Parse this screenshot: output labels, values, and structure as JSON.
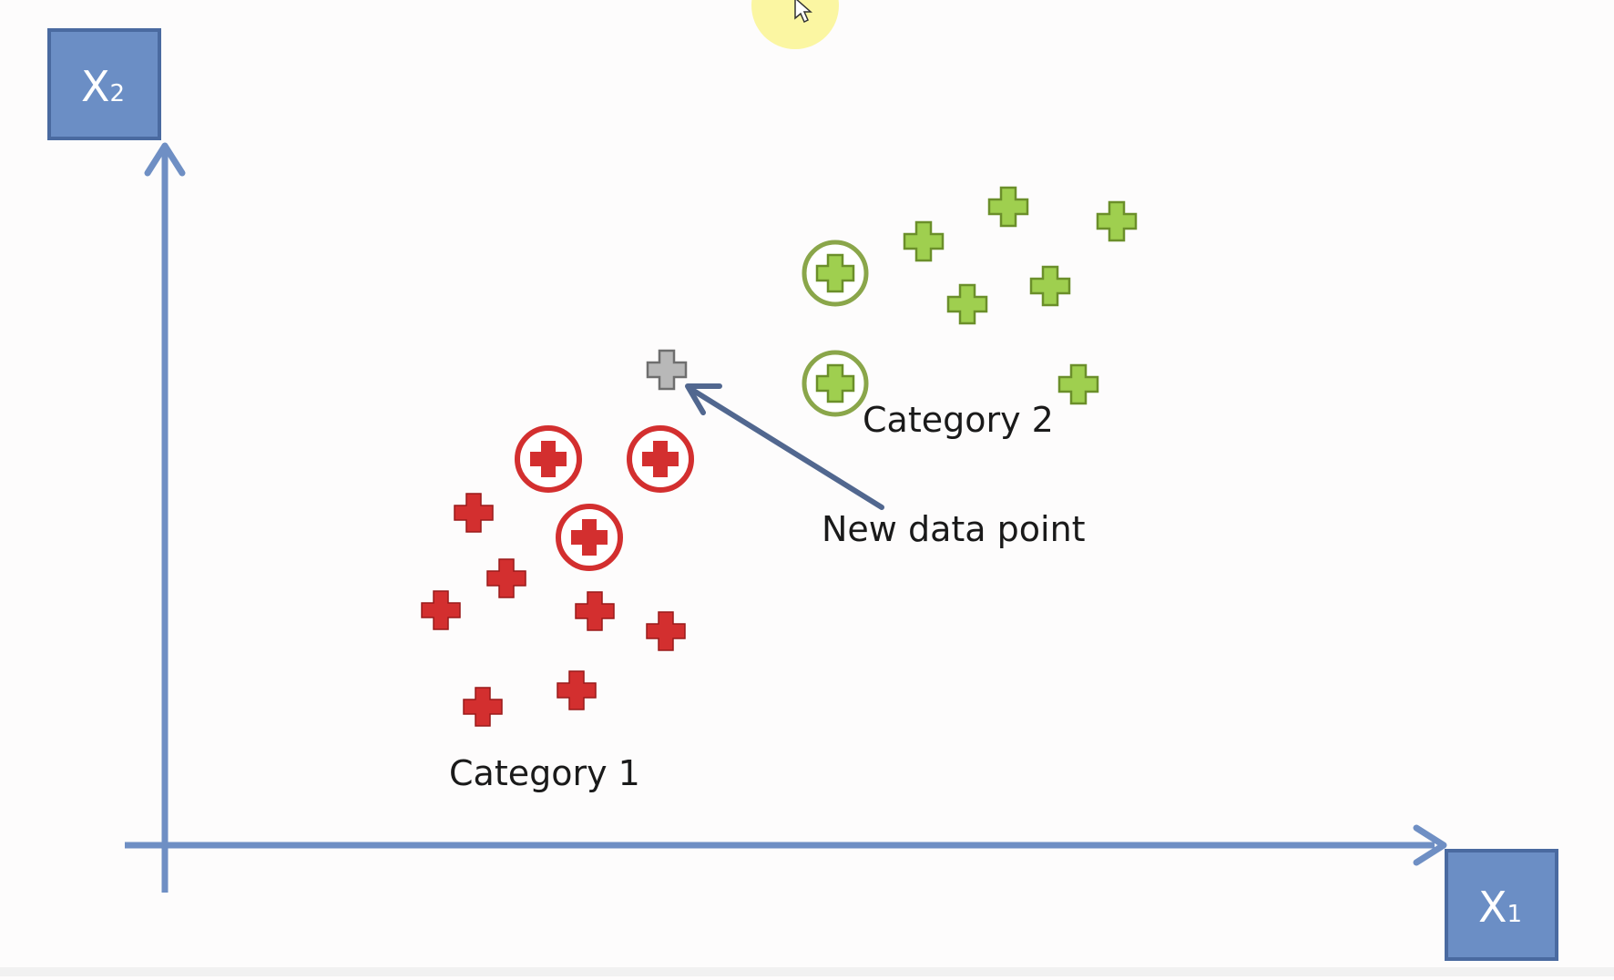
{
  "axes": {
    "y_label_main": "X",
    "y_label_sub": "2",
    "x_label_main": "X",
    "x_label_sub": "1"
  },
  "labels": {
    "category_1": "Category 1",
    "category_2": "Category 2",
    "new_point": "New data point"
  },
  "colors": {
    "axis": "#6f8fc4",
    "axis_box": "#6b8ec5",
    "axis_box_border": "#4a6aa0",
    "category_1": "#d32f2f",
    "category_2": "#9fcf4f",
    "category_2_outline": "#6b8f2a",
    "category_2_ring": "#8aa64a",
    "new_point": "#b8b8b8",
    "arrow": "#51678f",
    "cursor_highlight": "#fbf6a2"
  },
  "icons": {
    "data_point": "plus-icon",
    "cursor": "cursor-icon"
  }
}
